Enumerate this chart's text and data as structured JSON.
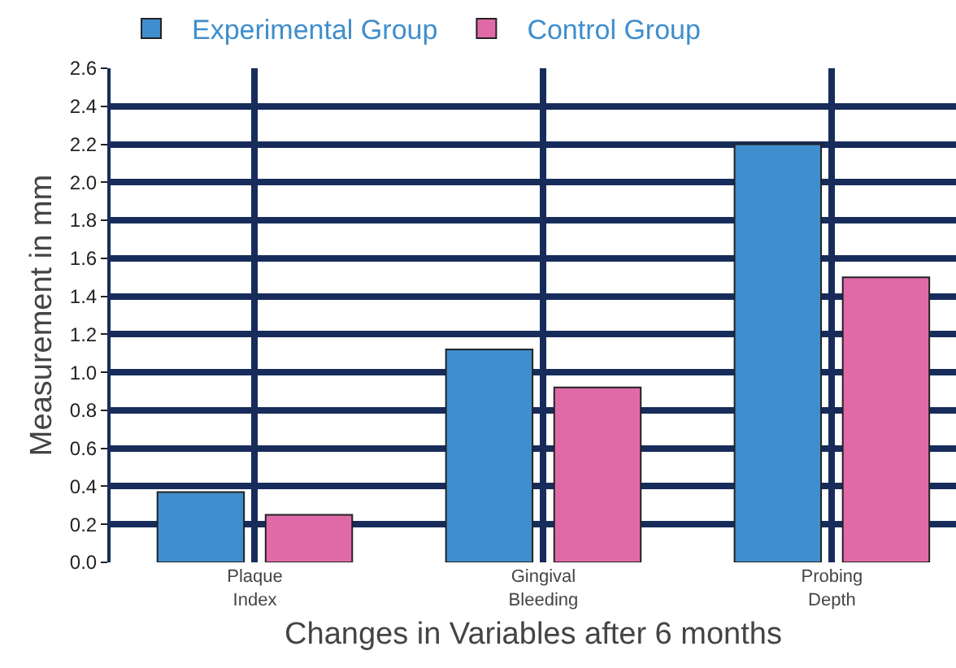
{
  "chart_data": {
    "type": "bar",
    "xlabel": "Changes in Variables after 6 months",
    "ylabel": "Measurement in mm",
    "categories": [
      "Plaque Index",
      "Gingival Bleeding",
      "Probing Depth"
    ],
    "series": [
      {
        "name": "Experimental Group",
        "color": "#3f8ecd",
        "values": [
          0.37,
          1.12,
          2.2
        ]
      },
      {
        "name": "Control Group",
        "color": "#e06aa8",
        "values": [
          0.25,
          0.92,
          1.5
        ]
      }
    ],
    "ylim": [
      0,
      2.6
    ],
    "yticks": [
      {
        "value": 0,
        "label": "0.0"
      },
      {
        "value": 0.2,
        "label": "0.2"
      },
      {
        "value": 0.4,
        "label": "0.4"
      },
      {
        "value": 0.6,
        "label": "0.6"
      },
      {
        "value": 0.8,
        "label": "0.8"
      },
      {
        "value": 1,
        "label": "1.0"
      },
      {
        "value": 1.2,
        "label": "1.2"
      },
      {
        "value": 1.4,
        "label": "1.4"
      },
      {
        "value": 1.6,
        "label": "1.6"
      },
      {
        "value": 1.8,
        "label": "1.8"
      },
      {
        "value": 2,
        "label": "2.0"
      },
      {
        "value": 2.2,
        "label": "2.2"
      },
      {
        "value": 2.4,
        "label": "2.4"
      },
      {
        "value": 2.6,
        "label": "2.6"
      }
    ],
    "grid": true,
    "legend": "top left"
  }
}
